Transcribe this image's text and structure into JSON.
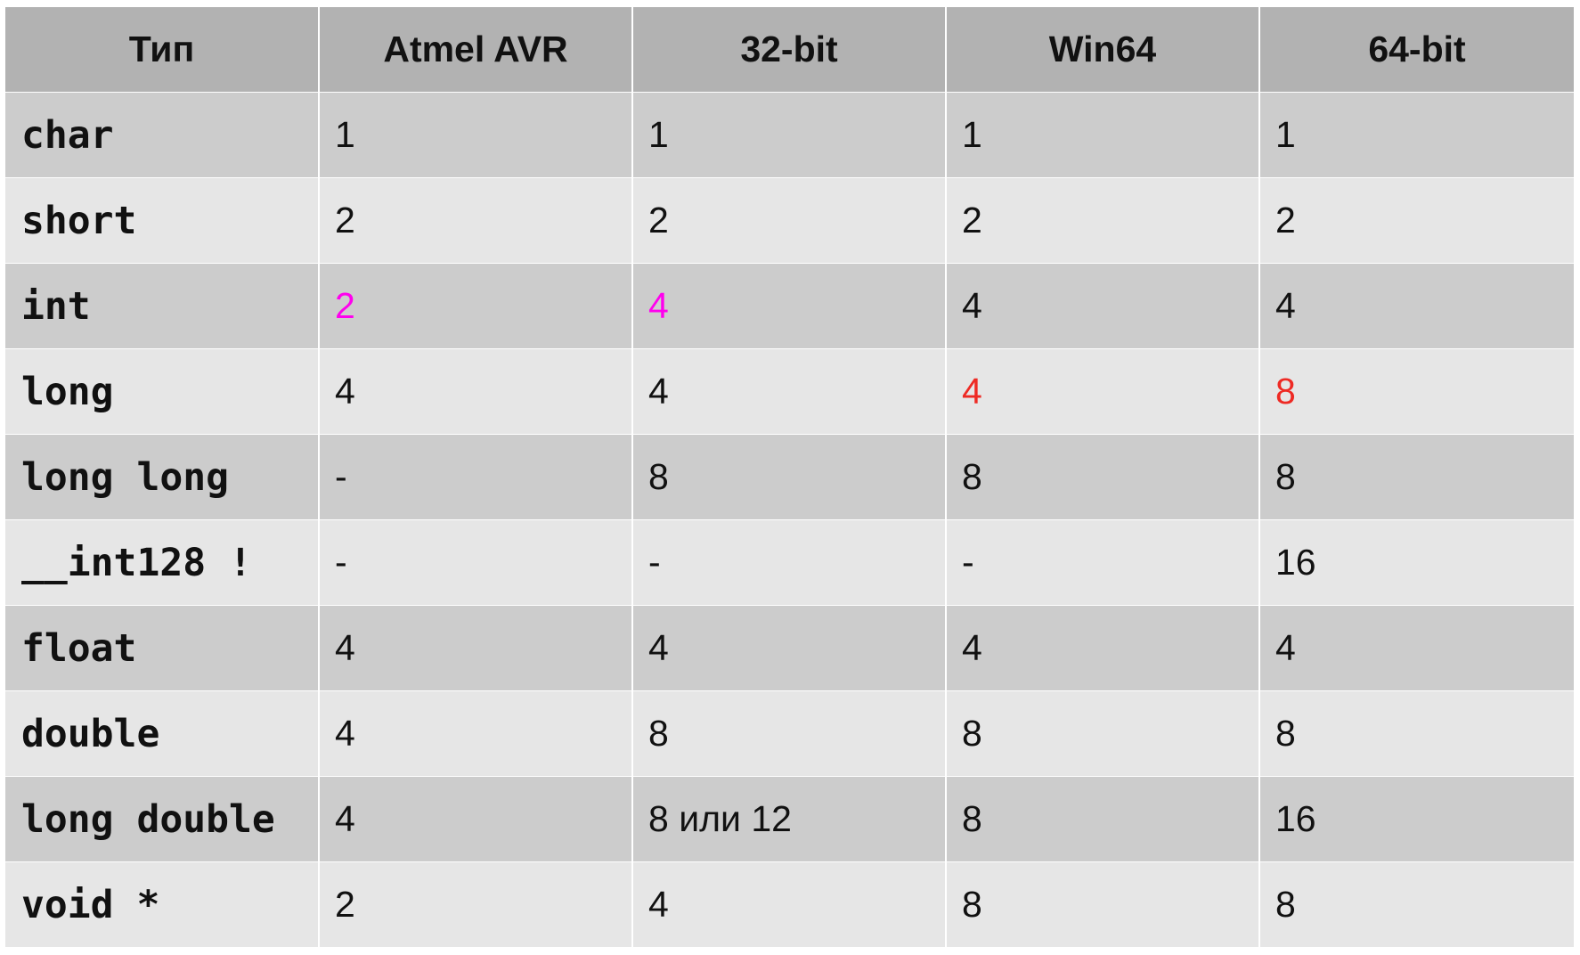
{
  "table": {
    "headers": [
      "Тип",
      "Atmel AVR",
      "32-bit",
      "Win64",
      "64-bit"
    ],
    "rows": [
      {
        "type": "char",
        "values": [
          "1",
          "1",
          "1",
          "1"
        ]
      },
      {
        "type": "short",
        "values": [
          "2",
          "2",
          "2",
          "2"
        ]
      },
      {
        "type": "int",
        "values": [
          "2",
          "4",
          "4",
          "4"
        ]
      },
      {
        "type": "long",
        "values": [
          "4",
          "4",
          "4",
          "8"
        ]
      },
      {
        "type": "long long",
        "values": [
          "-",
          "8",
          "8",
          "8"
        ]
      },
      {
        "type": "__int128 !",
        "values": [
          "-",
          "-",
          "-",
          "16"
        ]
      },
      {
        "type": "float",
        "values": [
          "4",
          "4",
          "4",
          "4"
        ]
      },
      {
        "type": "double",
        "values": [
          "4",
          "8",
          "8",
          "8"
        ]
      },
      {
        "type": "long double",
        "values": [
          "4",
          "8 или 12",
          "8",
          "16"
        ]
      },
      {
        "type": "void *",
        "values": [
          "2",
          "4",
          "8",
          "8"
        ]
      }
    ]
  },
  "colors": {
    "header_bg": "#b2b2b2",
    "row_dark_bg": "#cccccc",
    "row_light_bg": "#e6e6e6",
    "highlight_magenta": "#ff00ee",
    "highlight_red": "#ee2a24"
  }
}
